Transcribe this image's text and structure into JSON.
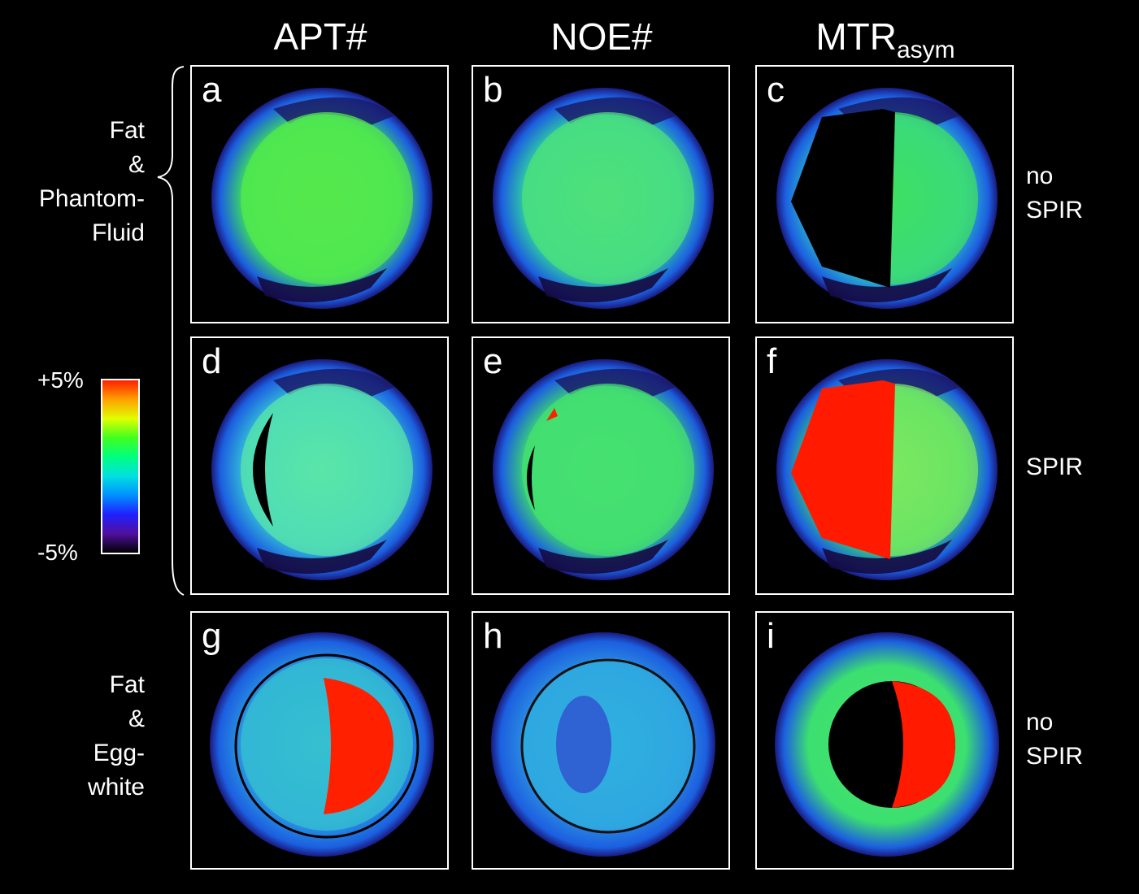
{
  "columns": [
    {
      "main": "APT#",
      "sub": ""
    },
    {
      "main": "NOE#",
      "sub": ""
    },
    {
      "main": "MTR",
      "sub": "asym"
    }
  ],
  "row_group_labels": {
    "top": [
      "Fat",
      "&",
      "Phantom-",
      "Fluid"
    ],
    "bottom": [
      "Fat",
      "&",
      "Egg-",
      "white"
    ]
  },
  "side_labels": {
    "row1": [
      "no",
      "SPIR"
    ],
    "row2": [
      "SPIR"
    ],
    "row3": [
      "no",
      "SPIR"
    ]
  },
  "colorbar": {
    "max_label": "+5%",
    "min_label": "-5%",
    "stops": [
      "#ff2000",
      "#ffa000",
      "#e0ff00",
      "#40ff20",
      "#00ff80",
      "#00e0e0",
      "#0090ff",
      "#2020ff",
      "#5010a0",
      "#000000"
    ]
  },
  "panels": [
    {
      "letter": "a",
      "base": "#3de25a",
      "inner": "#56e84c",
      "half": null,
      "halfColor": null
    },
    {
      "letter": "b",
      "base": "#2fd3a0",
      "inner": "#4fe07a",
      "half": null,
      "halfColor": null
    },
    {
      "letter": "c",
      "base": "#2ec8c8",
      "inner": "#3fe060",
      "half": "left",
      "halfColor": "#000000"
    },
    {
      "letter": "d",
      "base": "#33c0d8",
      "inner": "#5ae6a8",
      "half": "leftcrescent",
      "halfColor": "#000000"
    },
    {
      "letter": "e",
      "base": "#3bd870",
      "inner": "#45e070",
      "half": "leftsliver",
      "halfColor": "#000000"
    },
    {
      "letter": "f",
      "base": "#36d870",
      "inner": "#7ce860",
      "half": "left",
      "halfColor": "#ff1a00"
    },
    {
      "letter": "g",
      "base": "#2a9ae0",
      "inner": "#35c0d0",
      "half": "rightred",
      "halfColor": "#ff2000"
    },
    {
      "letter": "h",
      "base": "#2b8ee0",
      "inner": "#30b0e0",
      "half": null,
      "halfColor": null
    },
    {
      "letter": "i",
      "base": "#3ce070",
      "inner": "#46e068",
      "half": "ring",
      "halfColor": "#ff1a00"
    }
  ]
}
